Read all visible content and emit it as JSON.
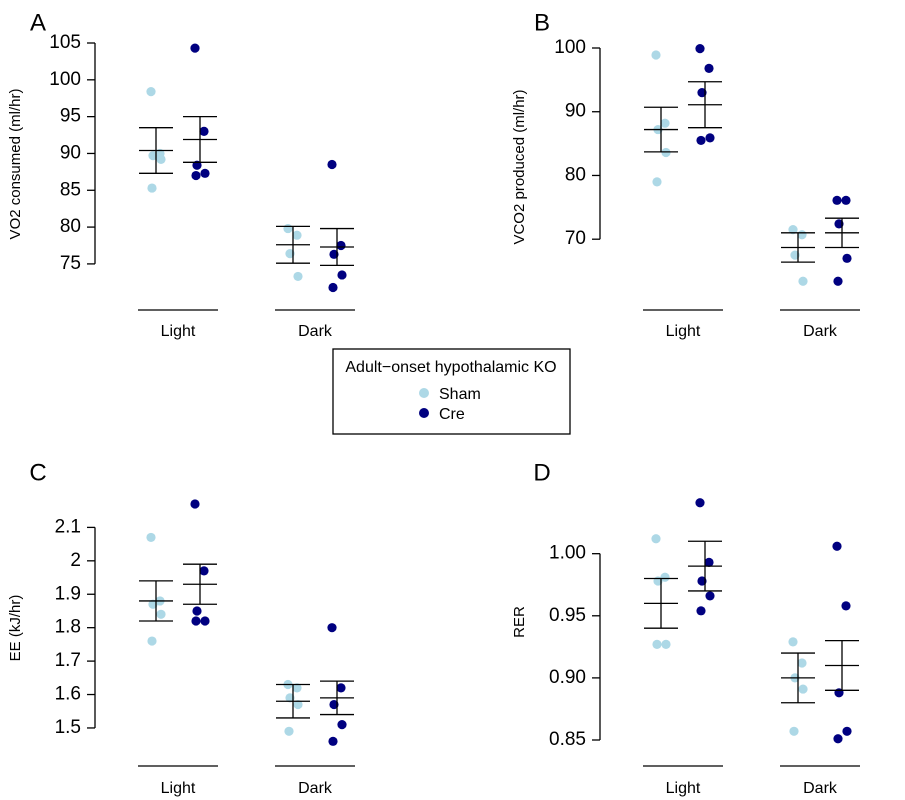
{
  "colors": {
    "sham": "#add8e6",
    "cre": "#000080",
    "ink": "#000000"
  },
  "legend": {
    "title": "Adult−onset hypothalamic KO",
    "items": [
      "Sham",
      "Cre"
    ]
  },
  "chart_data": [
    {
      "panel": "A",
      "type": "scatter",
      "ylabel": "VO2 consumed (ml/hr)",
      "categories": [
        "Light",
        "Dark"
      ],
      "yticks": [
        75,
        80,
        85,
        90,
        95,
        100,
        105
      ],
      "ylim": [
        72,
        105
      ],
      "series": [
        {
          "name": "Sham",
          "groups": [
            {
              "category": "Light",
              "points": [
                98.4,
                90.0,
                89.7,
                89.2,
                85.3
              ],
              "mean": 90.4,
              "upper": 93.5,
              "lower": 87.3
            },
            {
              "category": "Dark",
              "points": [
                79.8,
                78.9,
                76.4,
                73.3
              ],
              "mean": 77.6,
              "upper": 80.1,
              "lower": 75.1
            }
          ]
        },
        {
          "name": "Cre",
          "groups": [
            {
              "category": "Light",
              "points": [
                104.3,
                93.0,
                88.4,
                87.3,
                87.0
              ],
              "mean": 91.9,
              "upper": 95.0,
              "lower": 88.8
            },
            {
              "category": "Dark",
              "points": [
                88.5,
                77.5,
                76.3,
                73.5,
                71.8
              ],
              "mean": 77.3,
              "upper": 79.8,
              "lower": 74.8
            }
          ]
        }
      ]
    },
    {
      "panel": "B",
      "type": "scatter",
      "ylabel": "VCO2 produced (ml/hr)",
      "categories": [
        "Light",
        "Dark"
      ],
      "yticks": [
        70,
        80,
        90,
        100
      ],
      "ylim": [
        62.5,
        100
      ],
      "series": [
        {
          "name": "Sham",
          "groups": [
            {
              "category": "Light",
              "points": [
                98.9,
                88.2,
                87.2,
                83.6,
                79.0
              ],
              "mean": 87.2,
              "upper": 90.7,
              "lower": 83.7
            },
            {
              "category": "Dark",
              "points": [
                71.5,
                70.7,
                67.5,
                63.4
              ],
              "mean": 68.7,
              "upper": 71.0,
              "lower": 66.4
            }
          ]
        },
        {
          "name": "Cre",
          "groups": [
            {
              "category": "Light",
              "points": [
                99.9,
                96.8,
                93.0,
                85.9,
                85.5
              ],
              "mean": 91.1,
              "upper": 94.7,
              "lower": 87.5
            },
            {
              "category": "Dark",
              "points": [
                76.1,
                76.1,
                72.4,
                67.0,
                63.4
              ],
              "mean": 71.0,
              "upper": 73.3,
              "lower": 68.7
            }
          ]
        }
      ]
    },
    {
      "panel": "C",
      "type": "scatter",
      "ylabel": "EE (kJ/hr)",
      "categories": [
        "Light",
        "Dark"
      ],
      "yticks": [
        1.5,
        1.6,
        1.7,
        1.8,
        1.9,
        2.0,
        2.1
      ],
      "ylim": [
        1.455,
        2.17
      ],
      "series": [
        {
          "name": "Sham",
          "groups": [
            {
              "category": "Light",
              "points": [
                2.07,
                1.88,
                1.87,
                1.84,
                1.76
              ],
              "mean": 1.88,
              "upper": 1.94,
              "lower": 1.82
            },
            {
              "category": "Dark",
              "points": [
                1.63,
                1.62,
                1.59,
                1.57,
                1.49
              ],
              "mean": 1.58,
              "upper": 1.63,
              "lower": 1.53
            }
          ]
        },
        {
          "name": "Cre",
          "groups": [
            {
              "category": "Light",
              "points": [
                2.17,
                1.97,
                1.85,
                1.82,
                1.82
              ],
              "mean": 1.93,
              "upper": 1.99,
              "lower": 1.87
            },
            {
              "category": "Dark",
              "points": [
                1.8,
                1.62,
                1.57,
                1.51,
                1.46
              ],
              "mean": 1.59,
              "upper": 1.64,
              "lower": 1.54
            }
          ]
        }
      ]
    },
    {
      "panel": "D",
      "type": "scatter",
      "ylabel": "RER",
      "categories": [
        "Light",
        "Dark"
      ],
      "yticks": [
        0.85,
        0.9,
        0.95,
        1.0
      ],
      "yticklabels": [
        "0.85",
        "0.90",
        "0.95",
        "1.00"
      ],
      "ylim": [
        0.85,
        1.04
      ],
      "series": [
        {
          "name": "Sham",
          "groups": [
            {
              "category": "Light",
              "points": [
                1.012,
                0.981,
                0.978,
                0.927,
                0.927
              ],
              "mean": 0.96,
              "upper": 0.98,
              "lower": 0.94
            },
            {
              "category": "Dark",
              "points": [
                0.929,
                0.912,
                0.9,
                0.891,
                0.857
              ],
              "mean": 0.9,
              "upper": 0.92,
              "lower": 0.88
            }
          ]
        },
        {
          "name": "Cre",
          "groups": [
            {
              "category": "Light",
              "points": [
                1.041,
                0.993,
                0.978,
                0.966,
                0.954
              ],
              "mean": 0.99,
              "upper": 1.01,
              "lower": 0.97
            },
            {
              "category": "Dark",
              "points": [
                1.006,
                0.958,
                0.888,
                0.857,
                0.851
              ],
              "mean": 0.91,
              "upper": 0.93,
              "lower": 0.89
            }
          ]
        }
      ]
    }
  ]
}
